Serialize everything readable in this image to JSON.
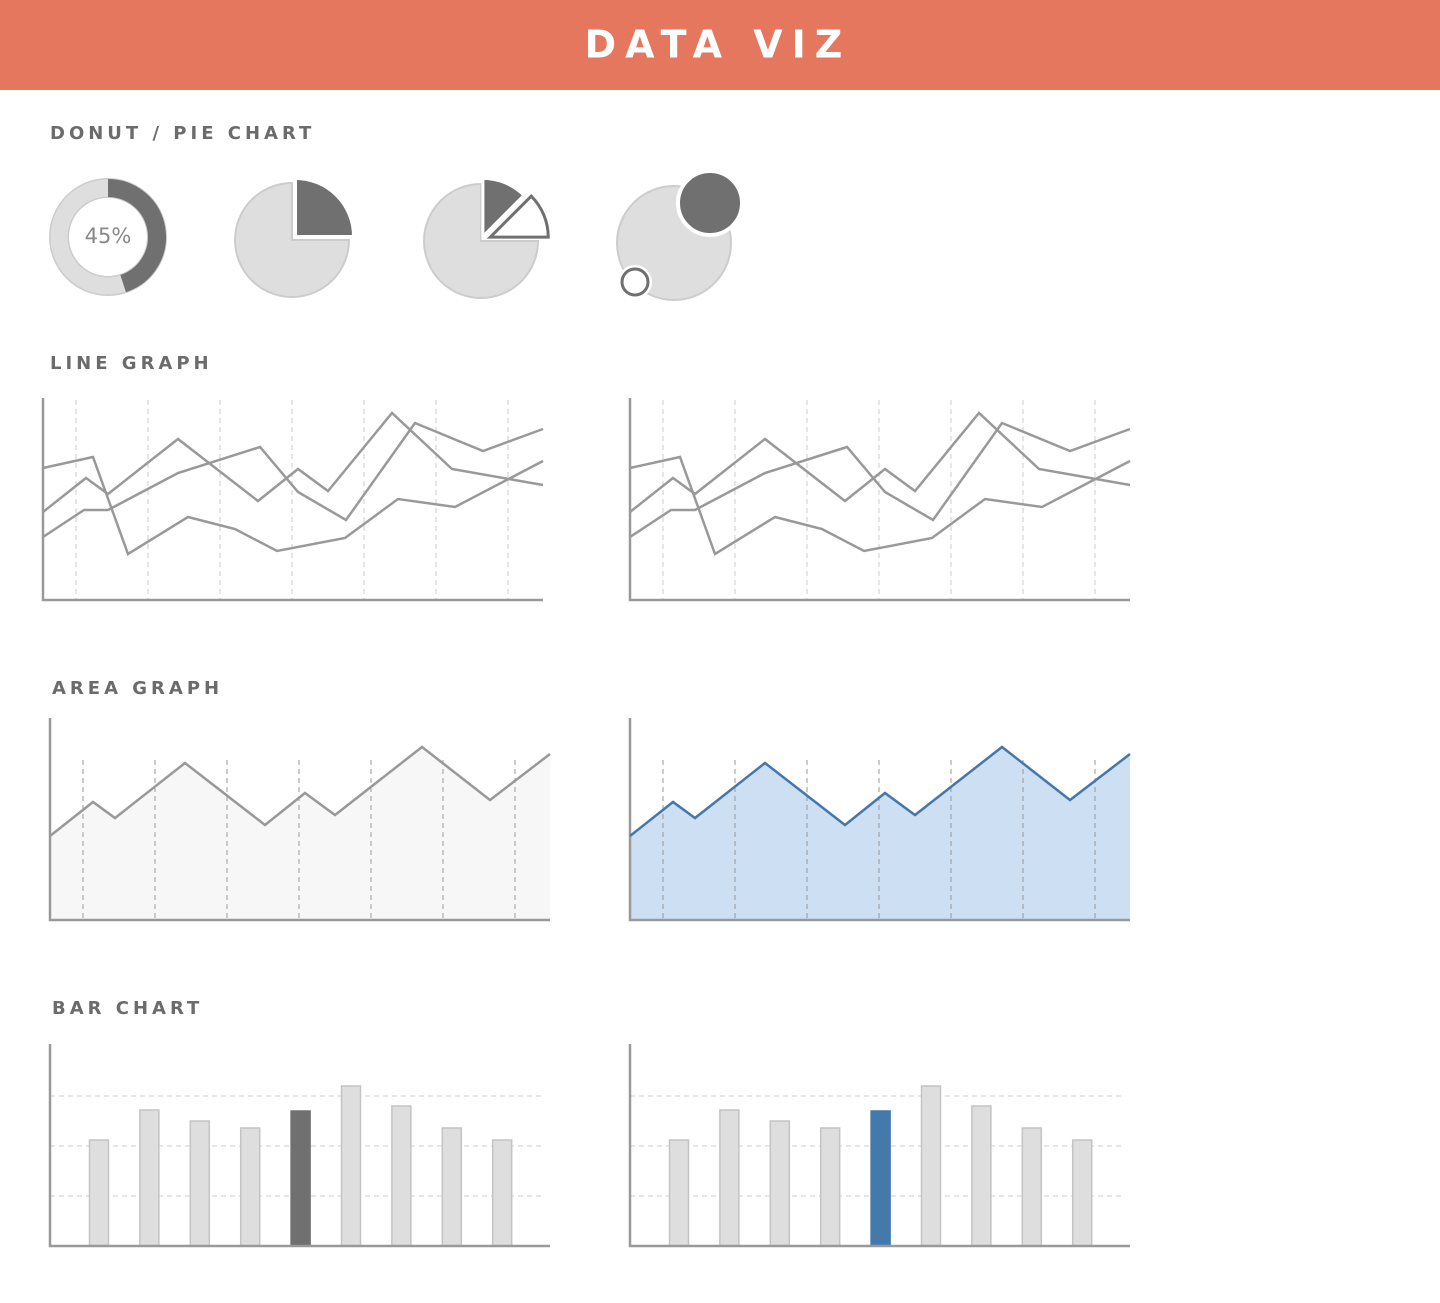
{
  "header": {
    "title": "DATA VIZ"
  },
  "sections": [
    "DONUT / PIE CHART",
    "LINE GRAPH",
    "AREA GRAPH",
    "BAR CHART"
  ],
  "donut": {
    "type": "donut",
    "values": [
      45
    ],
    "value_labels": [
      "45%"
    ]
  },
  "pies": [
    {
      "type": "pie",
      "values": [
        25
      ]
    },
    {
      "type": "pie",
      "values": [
        12.5,
        12.5
      ]
    }
  ],
  "line_graph": {
    "type": "line",
    "xlim": [
      0,
      100
    ],
    "ylim": [
      0,
      100
    ],
    "xticks": [
      6.6,
      21,
      35.4,
      49.8,
      64.2,
      78.6,
      93
    ],
    "color": "#999999",
    "series": [
      {
        "x": [
          0,
          10,
          17,
          29,
          38.4,
          46.8,
          60.4,
          71,
          82.4,
          100
        ],
        "values": [
          66,
          71.5,
          23,
          41.5,
          35.5,
          24.5,
          31,
          50.5,
          46.5,
          69.5
        ]
      },
      {
        "x": [
          0,
          8.6,
          13,
          27,
          43,
          51,
          57,
          69.8,
          81.8,
          100
        ],
        "values": [
          44,
          61,
          53,
          80.5,
          49.5,
          65.5,
          54.5,
          93.5,
          65.5,
          57.5
        ]
      },
      {
        "x": [
          0,
          8.2,
          13,
          27,
          43.4,
          51,
          60.6,
          74.4,
          88,
          100
        ],
        "values": [
          31.5,
          45,
          45,
          63.5,
          76.5,
          54,
          40,
          88.5,
          74.5,
          85.5
        ]
      }
    ]
  },
  "area_graph": {
    "type": "area",
    "xlim": [
      0,
      100
    ],
    "ylim": [
      0,
      100
    ],
    "xticks": [
      6.6,
      21,
      35.4,
      49.8,
      64.2,
      78.6,
      93
    ],
    "x": [
      0,
      8.6,
      13,
      27,
      43,
      51,
      57,
      74.4,
      88,
      100
    ],
    "values": [
      42,
      59,
      51,
      78.5,
      47.5,
      63.5,
      52.5,
      86.5,
      60,
      83
    ],
    "variants": [
      {
        "fill": "#f7f7f7",
        "stroke": "#999999"
      },
      {
        "fill": "#cddff2",
        "stroke": "#4677ab"
      }
    ]
  },
  "bar_chart": {
    "type": "bar",
    "categories": [
      null,
      null,
      null,
      null,
      null,
      null,
      null,
      null,
      null
    ],
    "values": [
      53,
      68,
      62.5,
      59,
      67.5,
      80,
      70,
      59,
      53
    ],
    "ylim": [
      0,
      100
    ],
    "yticks": [
      25,
      50,
      75
    ],
    "color": "#dedede",
    "highlight": 4,
    "highlight_colors": [
      "#707070",
      "#4479ac"
    ]
  }
}
